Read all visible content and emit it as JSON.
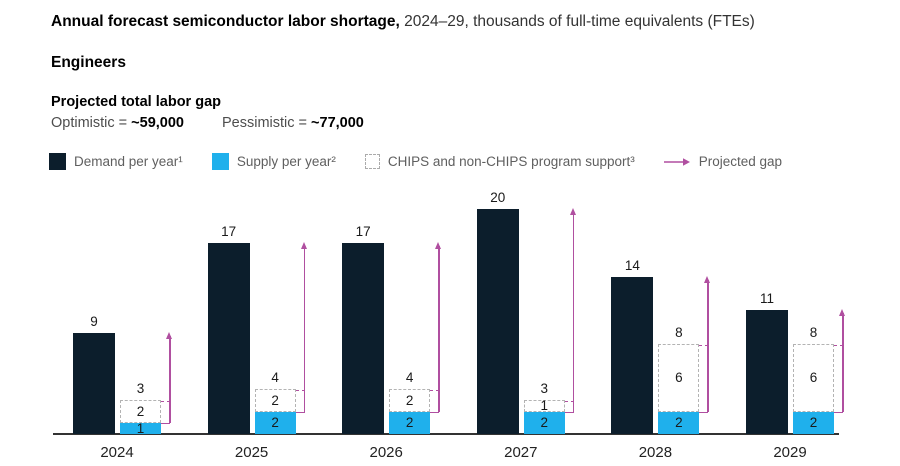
{
  "title": {
    "bold": "Annual forecast semiconductor labor shortage,",
    "regular": " 2024–29, thousands of full-time equivalents (FTEs)"
  },
  "subtitle": "Engineers",
  "gap": {
    "heading": "Projected total labor gap",
    "optimistic_prefix": "Optimistic = ",
    "optimistic_value": "~59,000",
    "pessimistic_prefix": "Pessimistic = ",
    "pessimistic_value": "~77,000"
  },
  "legend": {
    "demand": "Demand per year¹",
    "supply": "Supply per year²",
    "chips": "CHIPS and non-CHIPS program support³",
    "gap_arrow": "Projected gap"
  },
  "colors": {
    "demand": "#0c1e2c",
    "supply": "#1fb0ec",
    "chips_border": "#b3b3b3",
    "arrow": "#b04fa0",
    "axis": "#333333"
  },
  "chart_data": {
    "type": "bar",
    "categories": [
      "2024",
      "2025",
      "2026",
      "2027",
      "2028",
      "2029"
    ],
    "series": [
      {
        "name": "Demand per year",
        "values": [
          9,
          17,
          17,
          20,
          14,
          11
        ]
      },
      {
        "name": "Supply per year",
        "values": [
          1,
          2,
          2,
          2,
          2,
          2
        ]
      },
      {
        "name": "CHIPS and non-CHIPS program support",
        "values": [
          2,
          2,
          2,
          1,
          6,
          6
        ]
      }
    ],
    "stack_total_labels": [
      3,
      4,
      4,
      3,
      8,
      8
    ],
    "projected_gap_arrows": {
      "description": "magenta arrow from top of supply bar up to top of demand bar",
      "values": [
        8,
        15,
        15,
        18,
        12,
        9
      ]
    },
    "title": "Annual forecast semiconductor labor shortage, 2024–29",
    "ylabel": "thousands of full-time equivalents (FTEs)",
    "ylim": [
      0,
      20
    ],
    "grid": false,
    "legend_position": "top"
  }
}
